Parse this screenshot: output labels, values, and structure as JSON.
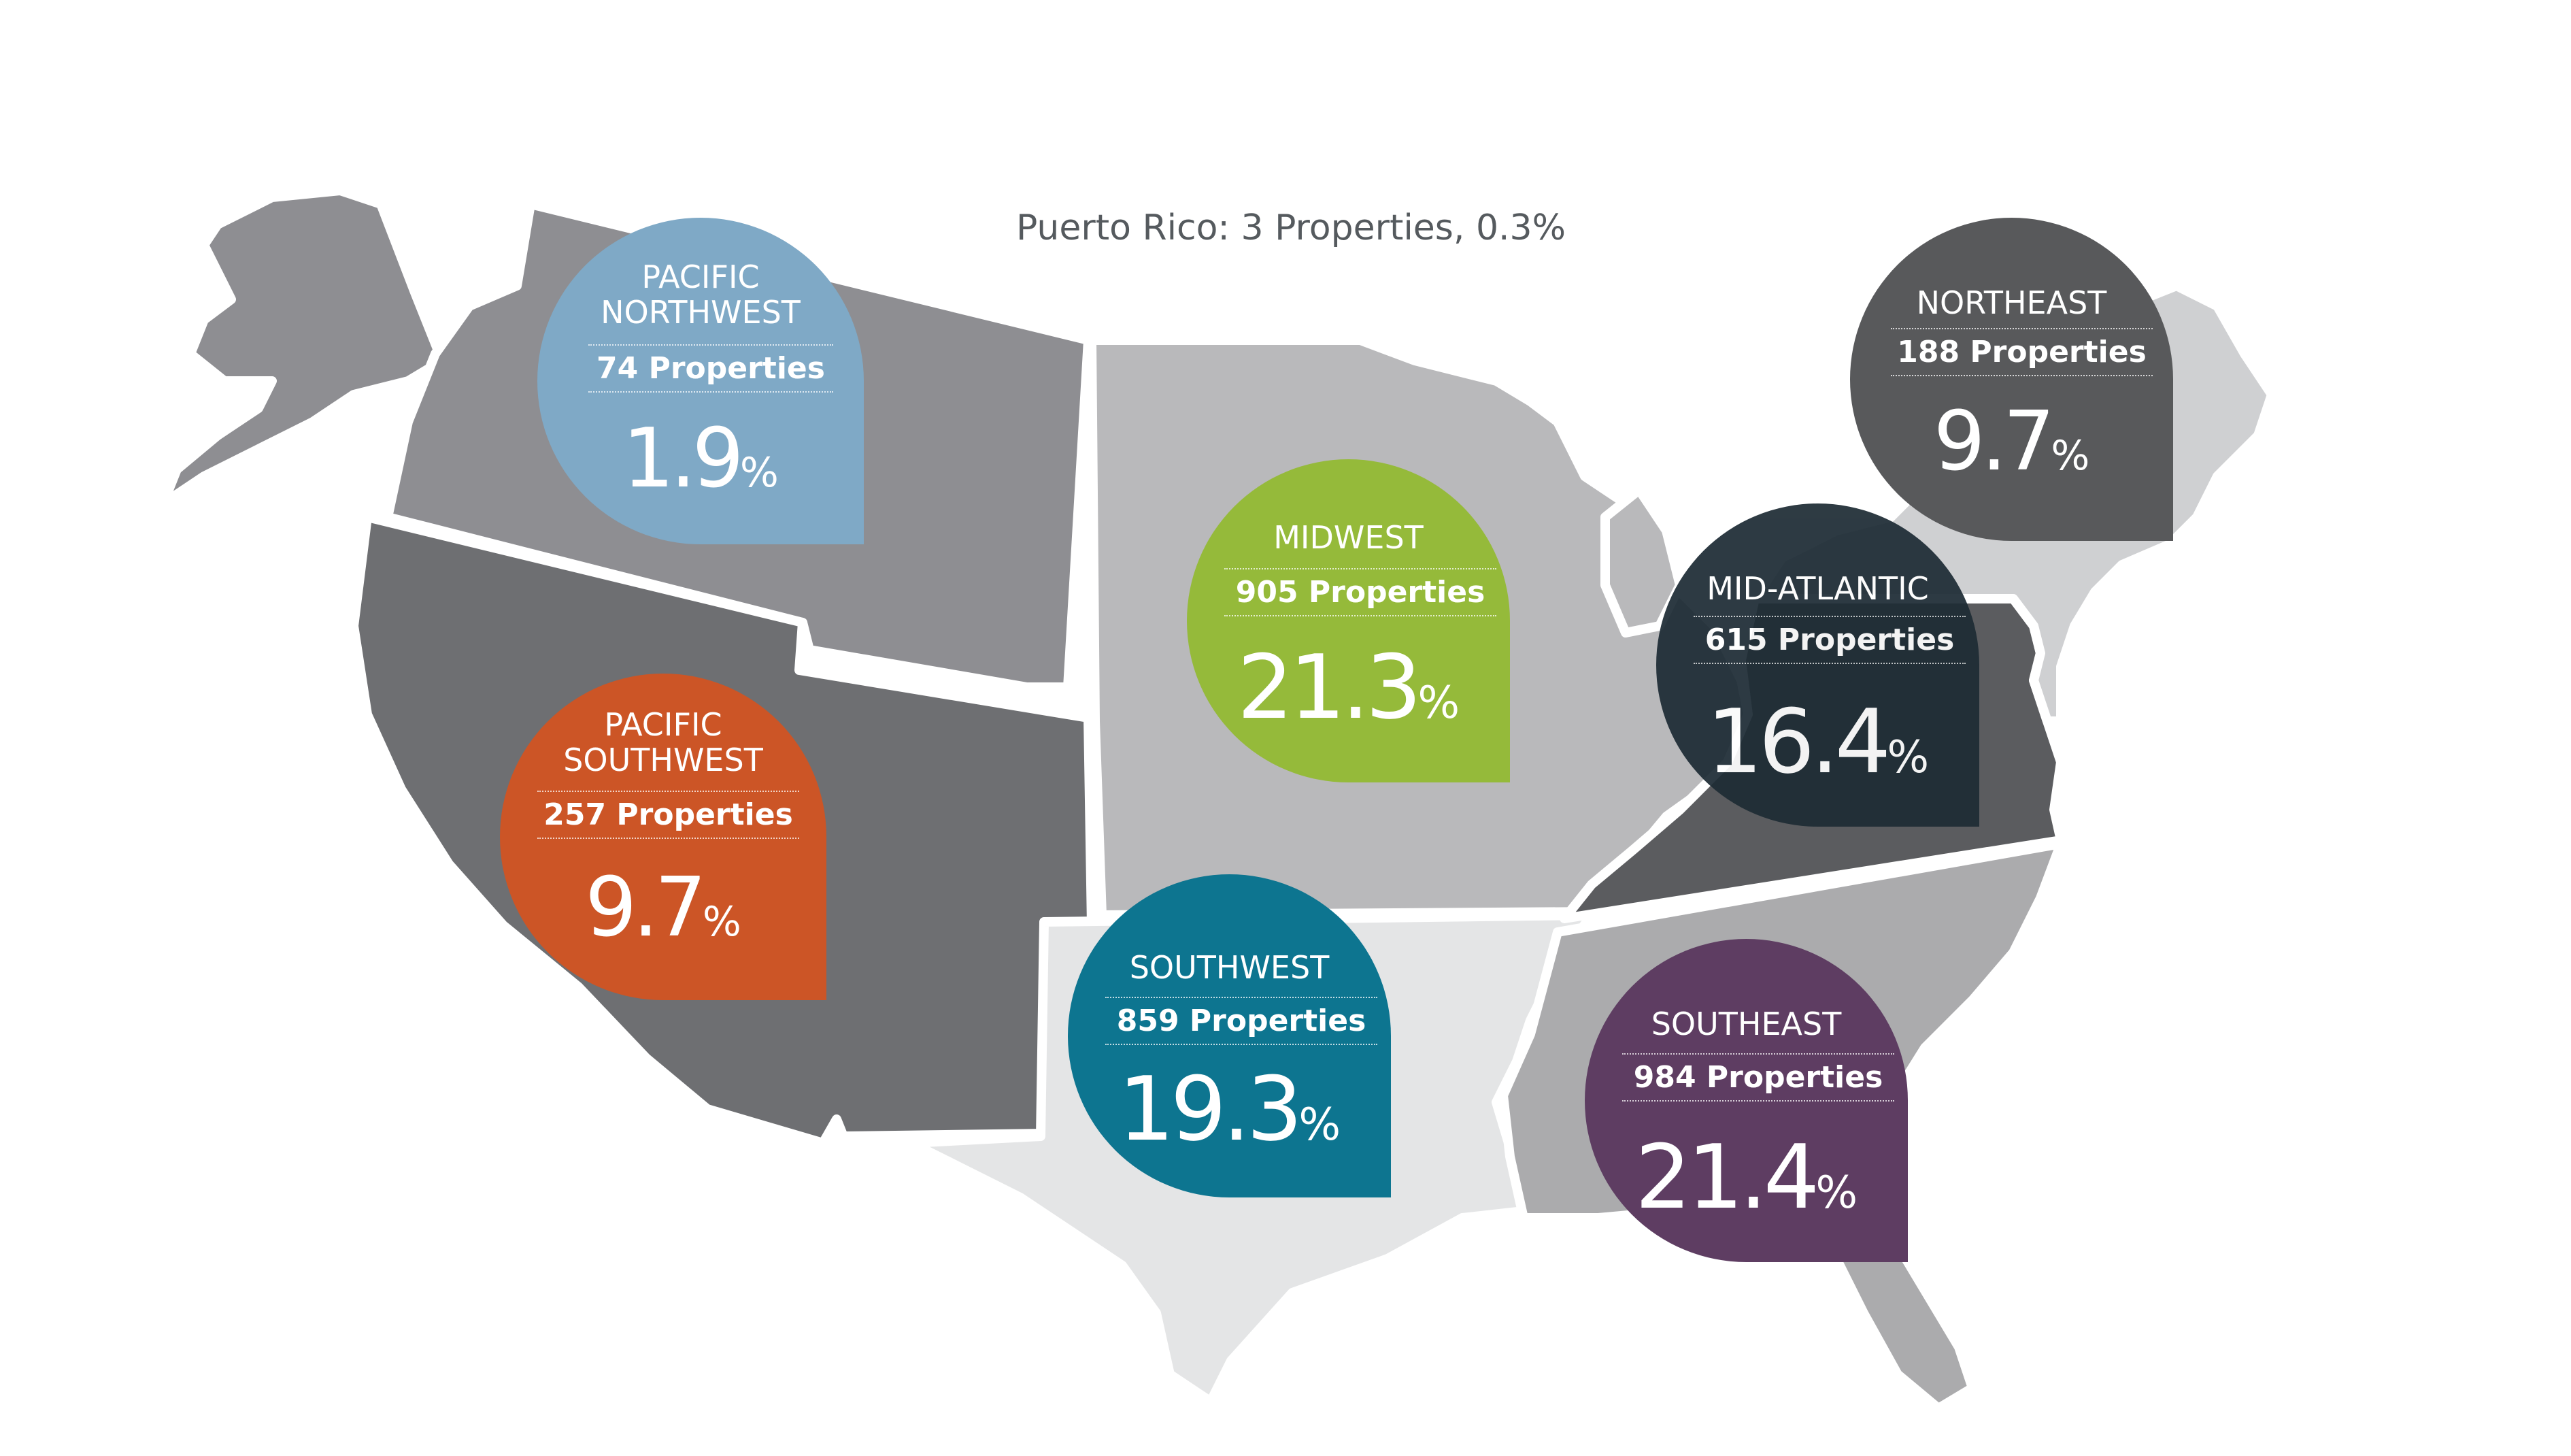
{
  "note": {
    "text": "Puerto Rico: 3 Properties, 0.3%"
  },
  "regions": [
    {
      "id": "pacific_northwest",
      "name_line1": "PACIFIC",
      "name_line2": "NORTHWEST",
      "properties": "74 Properties",
      "percent": "1.9",
      "percent_symbol": "%",
      "property_count": 74,
      "share_pct": 1.9,
      "bubble_color": "#7fa9c6",
      "land_color": "#8e8e92"
    },
    {
      "id": "pacific_southwest",
      "name_line1": "PACIFIC",
      "name_line2": "SOUTHWEST",
      "properties": "257 Properties",
      "percent": "9.7",
      "percent_symbol": "%",
      "property_count": 257,
      "share_pct": 9.7,
      "bubble_color": "#cc5526",
      "land_color": "#6e6f72"
    },
    {
      "id": "midwest",
      "name_line1": "MIDWEST",
      "properties": "905 Properties",
      "percent": "21.3",
      "percent_symbol": "%",
      "property_count": 905,
      "share_pct": 21.3,
      "bubble_color": "#95ba3a",
      "land_color": "#b9b9bb"
    },
    {
      "id": "southwest",
      "name_line1": "SOUTHWEST",
      "properties": "859 Properties",
      "percent": "19.3",
      "percent_symbol": "%",
      "property_count": 859,
      "share_pct": 19.3,
      "bubble_color": "#0d7590",
      "land_color": "#e4e5e6"
    },
    {
      "id": "northeast",
      "name_line1": "NORTHEAST",
      "properties": "188 Properties",
      "percent": "9.7",
      "percent_symbol": "%",
      "property_count": 188,
      "share_pct": 9.7,
      "bubble_color": "#58595b",
      "land_color": "#cfd0d2"
    },
    {
      "id": "mid_atlantic",
      "name_line1": "MID-ATLANTIC",
      "properties": "615 Properties",
      "percent": "16.4",
      "percent_symbol": "%",
      "property_count": 615,
      "share_pct": 16.4,
      "bubble_color": "#1e2c35",
      "land_color": "#5b5c5f"
    },
    {
      "id": "southeast",
      "name_line1": "SOUTHEAST",
      "properties": "984 Properties",
      "percent": "21.4",
      "percent_symbol": "%",
      "property_count": 984,
      "share_pct": 21.4,
      "bubble_color": "#5e3d62",
      "land_color": "#ababad"
    }
  ]
}
